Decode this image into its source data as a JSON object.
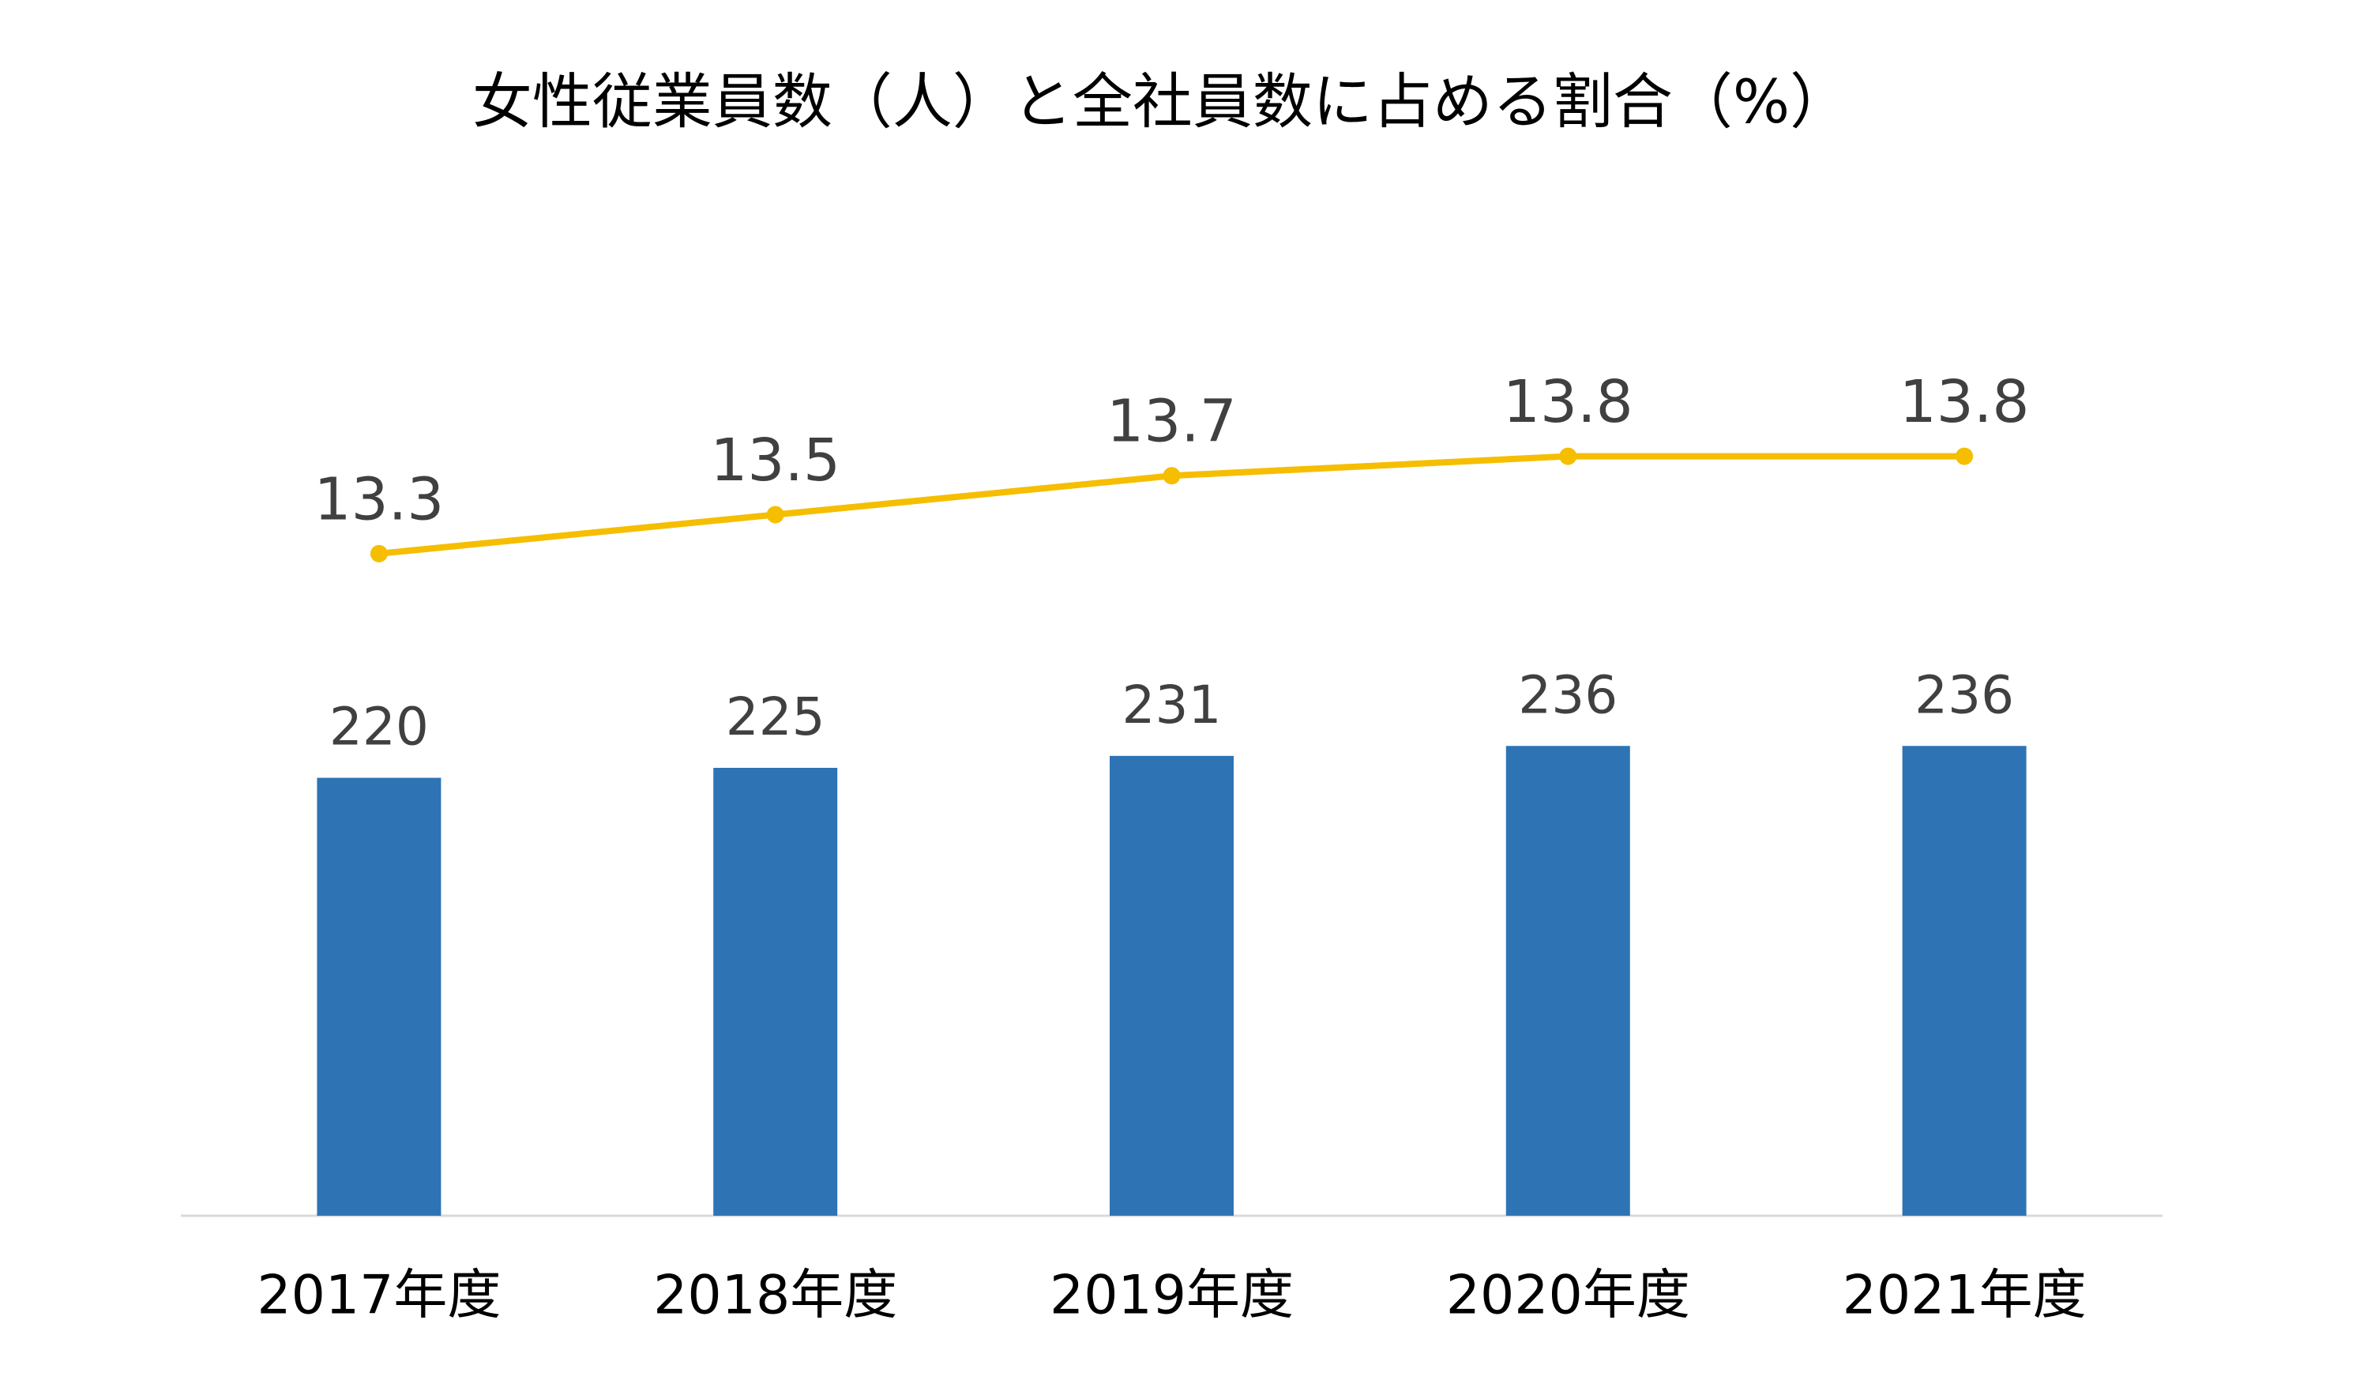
{
  "chart_data": {
    "type": "bar-line",
    "title": "女性従業員数（人）と全社員数に占める割合（%）",
    "categories": [
      "2017年度",
      "2018年度",
      "2019年度",
      "2020年度",
      "2021年度"
    ],
    "series": [
      {
        "type": "bar",
        "color": "#2e74b5",
        "values": [
          220,
          225,
          231,
          236,
          236
        ]
      },
      {
        "type": "line",
        "axis": "y2",
        "color": "#f5be00",
        "values": [
          13.3,
          13.5,
          13.7,
          13.8,
          13.8
        ]
      }
    ],
    "ylim": [
      0,
      450
    ],
    "y2lim": [
      9.9,
      14.5
    ]
  }
}
